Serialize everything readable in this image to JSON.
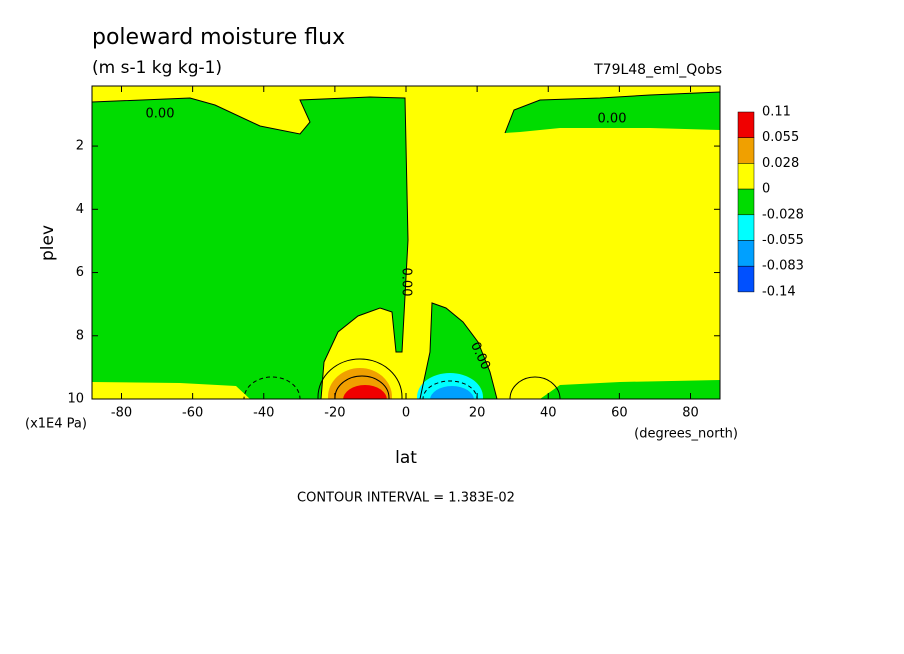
{
  "chart_data": {
    "type": "contour",
    "title": "poleward moisture flux",
    "subtitle": "(m s-1 kg kg-1)",
    "run_label": "T79L48_eml_Qobs",
    "x_label": "lat",
    "x_unit": "(degrees_north)",
    "y_label": "plev",
    "y_unit": "(x1E4 Pa)",
    "footnote": "CONTOUR INTERVAL = 1.383E-02",
    "contour_labels": [
      "0.00",
      "0.00",
      "0.00",
      "0.00"
    ],
    "xlim": [
      -88.3,
      88.3
    ],
    "xticks": [
      -80,
      -60,
      -40,
      -20,
      0,
      20,
      40,
      60,
      80
    ],
    "ylim": [
      10,
      0.1
    ],
    "yticks": [
      2,
      4,
      6,
      8,
      10
    ],
    "colorbar": {
      "labels": [
        0.11,
        0.055,
        0.028,
        0,
        -0.028,
        -0.055,
        -0.083,
        -0.14
      ],
      "colors": [
        "#f00000",
        "#f0a000",
        "#ffff00",
        "#00dc00",
        "#00ffff",
        "#00a0ff",
        "#0050ff"
      ]
    }
  }
}
